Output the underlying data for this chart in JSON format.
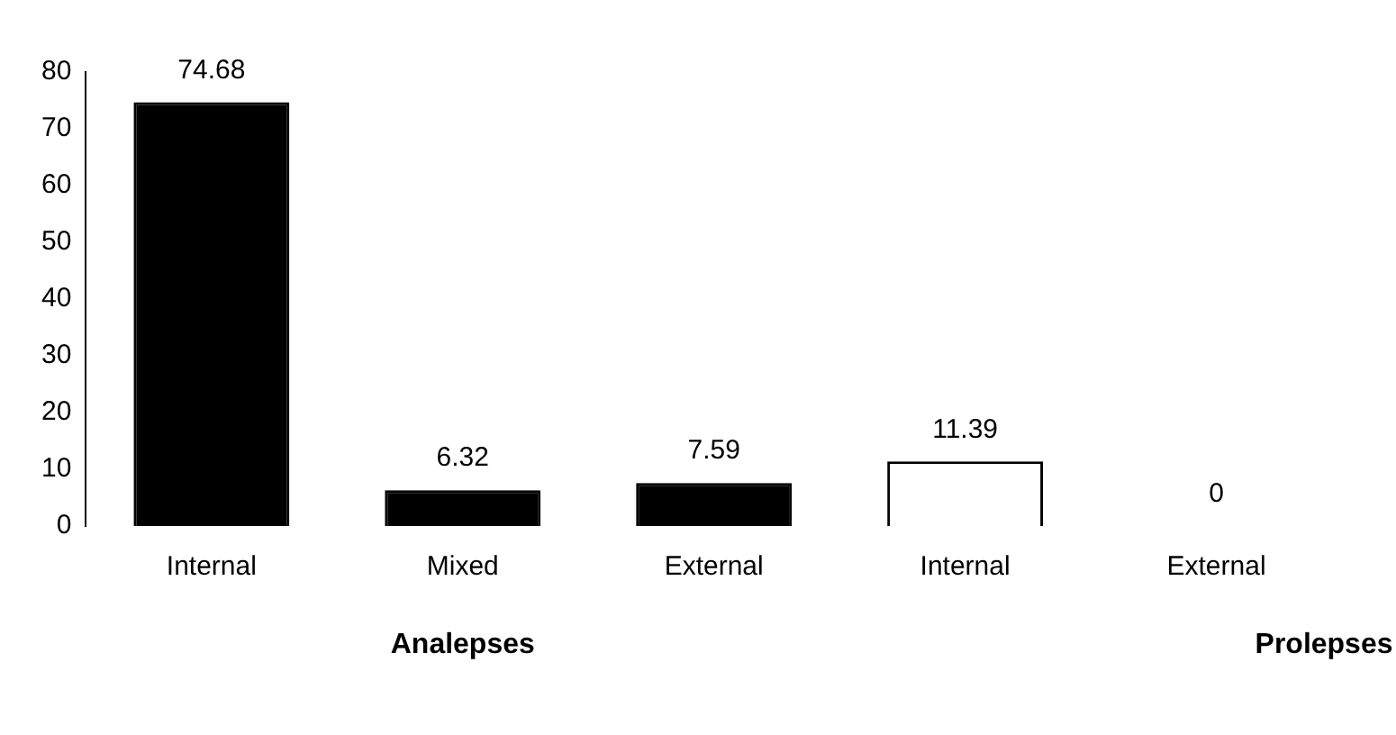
{
  "chart_data": {
    "type": "bar",
    "categories": [
      "Internal",
      "Mixed",
      "External",
      "Internal",
      "External"
    ],
    "values": [
      74.68,
      6.32,
      7.59,
      11.39,
      0
    ],
    "colors": [
      "#000000",
      "#000000",
      "#000000",
      "#ffffff",
      "#ffffff"
    ],
    "ylim": [
      0,
      80
    ],
    "yticks": [
      0,
      10,
      20,
      30,
      40,
      50,
      60,
      70,
      80
    ],
    "grid": false,
    "legend": false,
    "data_labels": true,
    "annotations": [
      "Analepses",
      "Prolepses"
    ]
  }
}
